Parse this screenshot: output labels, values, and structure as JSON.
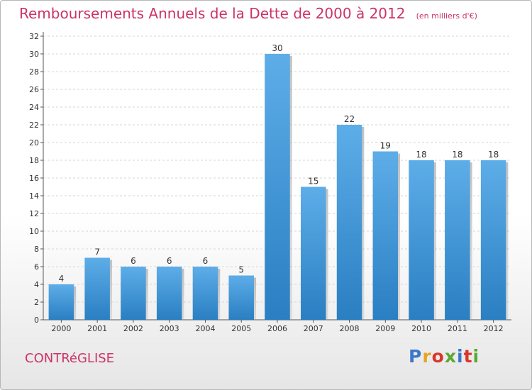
{
  "title": "Remboursements Annuels de la Dette de 2000 à 2012",
  "unit_note": "(en milliers d'€)",
  "commune": "CONTRéGLISE",
  "logo": {
    "text": "Proxiti",
    "letter_colors": [
      "#3a78c8",
      "#e8a323",
      "#d9362b",
      "#5aa832",
      "#3a78c8",
      "#d9362b",
      "#5aa832"
    ]
  },
  "colors": {
    "bar_top": "#5dade8",
    "bar_bottom": "#2a7fc2",
    "title": "#cc3366",
    "grid": "#d6d6d6"
  },
  "chart_data": {
    "type": "bar",
    "title": "Remboursements Annuels de la Dette de 2000 à 2012",
    "subtitle": "(en milliers d'€)",
    "categories": [
      "2000",
      "2001",
      "2002",
      "2003",
      "2004",
      "2005",
      "2006",
      "2007",
      "2008",
      "2009",
      "2010",
      "2011",
      "2012"
    ],
    "values": [
      4,
      7,
      6,
      6,
      6,
      5,
      30,
      15,
      22,
      19,
      18,
      18,
      18
    ],
    "ylim": [
      0,
      32
    ],
    "yticks": [
      0,
      2,
      4,
      6,
      8,
      10,
      12,
      14,
      16,
      18,
      20,
      22,
      24,
      26,
      28,
      30,
      32
    ],
    "grid": true,
    "data_labels": true,
    "xlabel": "",
    "ylabel": ""
  }
}
